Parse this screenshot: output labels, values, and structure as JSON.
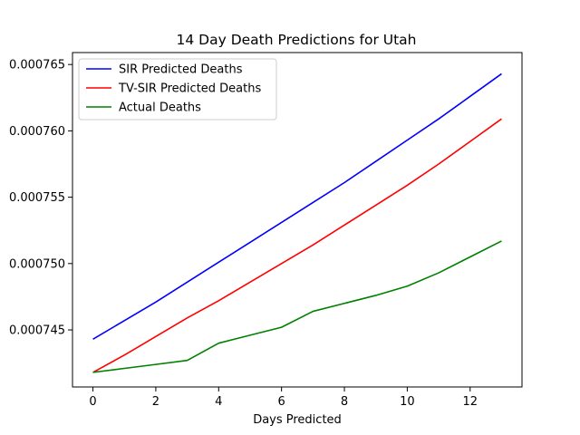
{
  "chart_data": {
    "type": "line",
    "title": "14 Day Death Predictions for Utah",
    "xlabel": "Days Predicted",
    "ylabel": "",
    "xlim": [
      -0.65,
      13.65
    ],
    "ylim": [
      0.0007407,
      0.0007659
    ],
    "x_ticks": [
      0,
      2,
      4,
      6,
      8,
      10,
      12
    ],
    "y_ticks": [
      0.000745,
      0.00075,
      0.000755,
      0.00076,
      0.000765
    ],
    "y_tick_labels": [
      "0.000745",
      "0.000750",
      "0.000755",
      "0.000760",
      "0.000765"
    ],
    "grid": false,
    "legend_position": "top-left",
    "x": [
      0,
      1,
      2,
      3,
      4,
      5,
      6,
      7,
      8,
      9,
      10,
      11,
      12,
      13
    ],
    "series": [
      {
        "name": "SIR Predicted Deaths",
        "color": "#0000ff",
        "values": [
          0.0007443,
          0.0007457,
          0.0007471,
          0.0007486,
          0.0007501,
          0.0007516,
          0.0007531,
          0.0007546,
          0.0007561,
          0.0007577,
          0.0007593,
          0.0007609,
          0.0007626,
          0.0007643
        ]
      },
      {
        "name": "TV-SIR Predicted Deaths",
        "color": "#ff0000",
        "values": [
          0.0007418,
          0.0007431,
          0.0007445,
          0.0007459,
          0.0007472,
          0.0007486,
          0.00075,
          0.0007514,
          0.0007529,
          0.0007544,
          0.0007559,
          0.0007575,
          0.0007592,
          0.0007609
        ]
      },
      {
        "name": "Actual Deaths",
        "color": "#008000",
        "values": [
          0.0007418,
          0.0007421,
          0.0007424,
          0.0007427,
          0.000744,
          0.0007446,
          0.0007452,
          0.0007464,
          0.000747,
          0.0007476,
          0.0007483,
          0.0007493,
          0.0007505,
          0.0007517
        ]
      }
    ]
  }
}
